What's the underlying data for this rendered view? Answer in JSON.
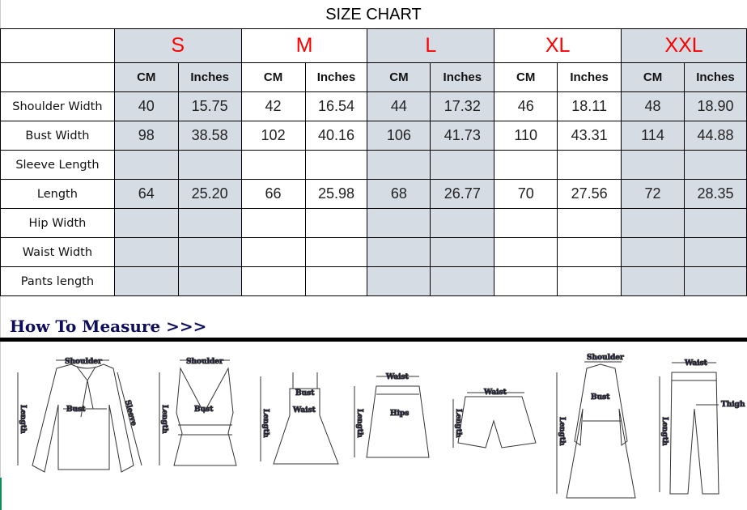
{
  "title": "SIZE CHART",
  "sizes": [
    "S",
    "M",
    "L",
    "XL",
    "XXL"
  ],
  "units": [
    "CM",
    "Inches"
  ],
  "size_color": "#ff0000",
  "shade_color": "#d6dce4",
  "rows": [
    {
      "label": "Shoulder Width",
      "values": [
        "40",
        "15.75",
        "42",
        "16.54",
        "44",
        "17.32",
        "46",
        "18.11",
        "48",
        "18.90"
      ]
    },
    {
      "label": "Bust Width",
      "values": [
        "98",
        "38.58",
        "102",
        "40.16",
        "106",
        "41.73",
        "110",
        "43.31",
        "114",
        "44.88"
      ]
    },
    {
      "label": "Sleeve Length",
      "values": [
        "",
        "",
        "",
        "",
        "",
        "",
        "",
        "",
        "",
        ""
      ]
    },
    {
      "label": "Length",
      "values": [
        "64",
        "25.20",
        "66",
        "25.98",
        "68",
        "26.77",
        "70",
        "27.56",
        "72",
        "28.35"
      ]
    },
    {
      "label": "Hip Width",
      "values": [
        "",
        "",
        "",
        "",
        "",
        "",
        "",
        "",
        "",
        ""
      ]
    },
    {
      "label": "Waist Width",
      "values": [
        "",
        "",
        "",
        "",
        "",
        "",
        "",
        "",
        "",
        ""
      ]
    },
    {
      "label": "Pants length",
      "values": [
        "",
        "",
        "",
        "",
        "",
        "",
        "",
        "",
        "",
        ""
      ]
    }
  ],
  "how_to_measure": {
    "heading": "How To Measure >>>",
    "labels": {
      "shoulder": "Shoulder",
      "bust": "Bust",
      "sleeve": "Sleeve",
      "length": "Length",
      "waist": "Waist",
      "hips": "Hips",
      "thigh": "Thigh"
    }
  }
}
